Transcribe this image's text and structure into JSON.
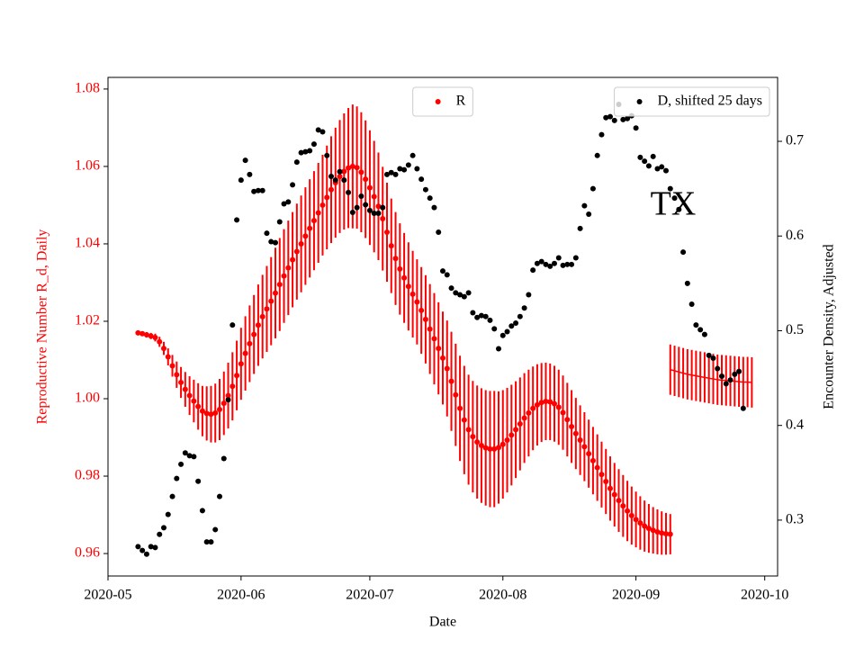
{
  "chart_data": {
    "type": "errorbar-scatter",
    "annotation": "TX",
    "x_label": "Date",
    "y_label": "Reproductive Number R_d, Daily",
    "y2_label": "Encounter Density, Adjusted",
    "y_color": "#ff0000",
    "xlim": [
      0,
      156
    ],
    "xticks": [
      {
        "value": 0,
        "label": "2020-05"
      },
      {
        "value": 31,
        "label": "2020-06"
      },
      {
        "value": 61,
        "label": "2020-07"
      },
      {
        "value": 92,
        "label": "2020-08"
      },
      {
        "value": 123,
        "label": "2020-09"
      },
      {
        "value": 153,
        "label": "2020-10"
      }
    ],
    "ylim": [
      0.9542,
      1.083
    ],
    "yticks": [
      0.96,
      0.98,
      {
        "value": 1,
        "label": "1.00"
      },
      1.02,
      1.04,
      1.06,
      1.08
    ],
    "y2lim": [
      0.241,
      0.7675
    ],
    "y2ticks": [
      0.3,
      0.4,
      0.5,
      0.6,
      0.7
    ],
    "x": [
      7,
      8,
      9,
      10,
      11,
      12,
      13,
      14,
      15,
      16,
      17,
      18,
      19,
      20,
      21,
      22,
      23,
      24,
      25,
      26,
      27,
      28,
      29,
      30,
      31,
      32,
      33,
      34,
      35,
      36,
      37,
      38,
      39,
      40,
      41,
      42,
      43,
      44,
      45,
      46,
      47,
      48,
      49,
      50,
      51,
      52,
      53,
      54,
      55,
      56,
      57,
      58,
      59,
      60,
      61,
      62,
      63,
      64,
      65,
      66,
      67,
      68,
      69,
      70,
      71,
      72,
      73,
      74,
      75,
      76,
      77,
      78,
      79,
      80,
      81,
      82,
      83,
      84,
      85,
      86,
      87,
      88,
      89,
      90,
      91,
      92,
      93,
      94,
      95,
      96,
      97,
      98,
      99,
      100,
      101,
      102,
      103,
      104,
      105,
      106,
      107,
      108,
      109,
      110,
      111,
      112,
      113,
      114,
      115,
      116,
      117,
      118,
      119,
      120,
      121,
      122,
      123,
      124,
      125,
      126,
      127,
      128,
      129,
      130,
      131,
      132,
      133,
      134,
      135,
      136,
      137,
      138,
      139,
      140,
      141,
      142,
      143,
      144,
      145,
      146,
      147,
      148,
      149,
      150
    ],
    "series": [
      {
        "name": "R",
        "color": "#ff0000",
        "marker": true,
        "legend": "upper center",
        "values": [
          1.017,
          1.0168,
          1.0165,
          1.0162,
          1.0158,
          1.0147,
          1.013,
          1.0108,
          1.0085,
          1.0062,
          1.0042,
          1.0024,
          1.0008,
          0.9994,
          0.998,
          0.9968,
          0.9962,
          0.996,
          0.9963,
          0.9972,
          0.9988,
          1.0008,
          1.0032,
          1.006,
          1.009,
          1.0117,
          1.0142,
          1.0166,
          1.019,
          1.0212,
          1.0232,
          1.0252,
          1.0273,
          1.0295,
          1.0317,
          1.0338,
          1.0359,
          1.038,
          1.04,
          1.042,
          1.044,
          1.046,
          1.048,
          1.05,
          1.052,
          1.054,
          1.0558,
          1.0574,
          1.0587,
          1.0596,
          1.06,
          1.0597,
          1.0585,
          1.0567,
          1.0545,
          1.0522,
          1.0497,
          1.0465,
          1.043,
          1.0395,
          1.0362,
          1.0335,
          1.0312,
          1.029,
          1.027,
          1.025,
          1.0228,
          1.0205,
          1.018,
          1.0155,
          1.013,
          1.0105,
          1.0078,
          1.0045,
          1.001,
          0.9975,
          0.9945,
          0.992,
          0.9902,
          0.9888,
          0.9879,
          0.9873,
          0.987,
          0.987,
          0.9874,
          0.9882,
          0.9893,
          0.9906,
          0.992,
          0.9935,
          0.995,
          0.9963,
          0.9975,
          0.9984,
          0.999,
          0.9993,
          0.9992,
          0.9987,
          0.9978,
          0.9964,
          0.9946,
          0.9928,
          0.991,
          0.9893,
          0.9876,
          0.9858,
          0.984,
          0.9822,
          0.9804,
          0.9786,
          0.9768,
          0.9752,
          0.9737,
          0.9723,
          0.971,
          0.9698,
          0.9688,
          0.9679,
          0.9671,
          0.9665,
          0.966,
          0.9656,
          0.9653,
          0.9651,
          0.965,
          null,
          null,
          null,
          null,
          null,
          null,
          null,
          null,
          null,
          null,
          null,
          null,
          null,
          null,
          null,
          null,
          null,
          null,
          null
        ],
        "errors": [
          0.0005,
          0.0006,
          0.0007,
          0.0008,
          0.001,
          0.0013,
          0.0017,
          0.0022,
          0.0028,
          0.0034,
          0.004,
          0.0045,
          0.005,
          0.0055,
          0.006,
          0.0065,
          0.007,
          0.0073,
          0.0076,
          0.0079,
          0.0082,
          0.0085,
          0.0088,
          0.009,
          0.0093,
          0.0096,
          0.0099,
          0.0102,
          0.0105,
          0.0108,
          0.0111,
          0.0114,
          0.0117,
          0.012,
          0.0121,
          0.0122,
          0.0123,
          0.0124,
          0.0125,
          0.0126,
          0.0127,
          0.0128,
          0.0129,
          0.013,
          0.0134,
          0.0138,
          0.0142,
          0.0146,
          0.015,
          0.0155,
          0.016,
          0.0158,
          0.0155,
          0.0152,
          0.0148,
          0.0144,
          0.0139,
          0.0134,
          0.0128,
          0.0122,
          0.012,
          0.0118,
          0.0116,
          0.0114,
          0.0112,
          0.011,
          0.0112,
          0.0114,
          0.0116,
          0.0118,
          0.0119,
          0.012,
          0.0124,
          0.0128,
          0.0132,
          0.0136,
          0.014,
          0.0142,
          0.0144,
          0.0146,
          0.0148,
          0.0149,
          0.015,
          0.015,
          0.0145,
          0.014,
          0.0135,
          0.013,
          0.0125,
          0.012,
          0.0116,
          0.0112,
          0.0108,
          0.0105,
          0.0102,
          0.01,
          0.0099,
          0.0098,
          0.0097,
          0.0096,
          0.0095,
          0.0094,
          0.0092,
          0.009,
          0.0089,
          0.0088,
          0.0087,
          0.0086,
          0.0085,
          0.0084,
          0.0083,
          0.0082,
          0.0081,
          0.008,
          0.0078,
          0.0075,
          0.0072,
          0.0069,
          0.0066,
          0.0063,
          0.006,
          0.0058,
          0.0056,
          0.0054,
          0.0052,
          null,
          null,
          null,
          null,
          null,
          null,
          null,
          null,
          null,
          null,
          null,
          null,
          null,
          null,
          null,
          null,
          null,
          null,
          null
        ]
      },
      {
        "color": "#ff0000",
        "marker": false,
        "values": [
          null,
          null,
          null,
          null,
          null,
          null,
          null,
          null,
          null,
          null,
          null,
          null,
          null,
          null,
          null,
          null,
          null,
          null,
          null,
          null,
          null,
          null,
          null,
          null,
          null,
          null,
          null,
          null,
          null,
          null,
          null,
          null,
          null,
          null,
          null,
          null,
          null,
          null,
          null,
          null,
          null,
          null,
          null,
          null,
          null,
          null,
          null,
          null,
          null,
          null,
          null,
          null,
          null,
          null,
          null,
          null,
          null,
          null,
          null,
          null,
          null,
          null,
          null,
          null,
          null,
          null,
          null,
          null,
          null,
          null,
          null,
          null,
          null,
          null,
          null,
          null,
          null,
          null,
          null,
          null,
          null,
          null,
          null,
          null,
          null,
          null,
          null,
          null,
          null,
          null,
          null,
          null,
          null,
          null,
          null,
          null,
          null,
          null,
          null,
          null,
          null,
          null,
          null,
          null,
          null,
          null,
          null,
          null,
          null,
          null,
          null,
          null,
          null,
          null,
          null,
          null,
          null,
          null,
          null,
          null,
          null,
          null,
          null,
          null,
          1.0075,
          1.0072,
          1.0069,
          1.0066,
          1.0063,
          1.0061,
          1.0059,
          1.0057,
          1.0055,
          1.0053,
          1.0051,
          1.0049,
          1.0048,
          1.0047,
          1.0046,
          1.0045,
          1.0044,
          1.0043,
          1.0043,
          1.0042
        ],
        "errors": [
          null,
          null,
          null,
          null,
          null,
          null,
          null,
          null,
          null,
          null,
          null,
          null,
          null,
          null,
          null,
          null,
          null,
          null,
          null,
          null,
          null,
          null,
          null,
          null,
          null,
          null,
          null,
          null,
          null,
          null,
          null,
          null,
          null,
          null,
          null,
          null,
          null,
          null,
          null,
          null,
          null,
          null,
          null,
          null,
          null,
          null,
          null,
          null,
          null,
          null,
          null,
          null,
          null,
          null,
          null,
          null,
          null,
          null,
          null,
          null,
          null,
          null,
          null,
          null,
          null,
          null,
          null,
          null,
          null,
          null,
          null,
          null,
          null,
          null,
          null,
          null,
          null,
          null,
          null,
          null,
          null,
          null,
          null,
          null,
          null,
          null,
          null,
          null,
          null,
          null,
          null,
          null,
          null,
          null,
          null,
          null,
          null,
          null,
          null,
          null,
          null,
          null,
          null,
          null,
          null,
          null,
          null,
          null,
          null,
          null,
          null,
          null,
          null,
          null,
          null,
          null,
          null,
          null,
          null,
          null,
          null,
          null,
          null,
          null,
          0.0065,
          0.0065,
          0.0065,
          0.0065,
          0.0065,
          0.0065,
          0.0065,
          0.0065,
          0.0065,
          0.0065,
          0.0065,
          0.0065,
          0.0065,
          0.0065,
          0.0065,
          0.0065,
          0.0065,
          0.0065,
          0.0065,
          0.0065
        ]
      },
      {
        "name": "D, shifted 25 days",
        "color": "#000000",
        "marker": true,
        "axis": "y2",
        "legend": "upper right",
        "values": [
          0.272,
          0.268,
          0.264,
          0.272,
          0.271,
          0.285,
          0.292,
          0.306,
          0.325,
          0.344,
          0.359,
          0.371,
          0.368,
          0.367,
          0.341,
          0.31,
          0.277,
          0.277,
          0.29,
          0.325,
          0.365,
          0.427,
          0.506,
          0.617,
          0.659,
          0.68,
          0.665,
          0.647,
          0.648,
          0.648,
          0.603,
          0.594,
          0.593,
          0.615,
          0.634,
          0.636,
          0.654,
          0.678,
          0.688,
          0.689,
          0.69,
          0.697,
          0.712,
          0.71,
          0.685,
          0.663,
          0.659,
          0.668,
          0.659,
          0.646,
          0.625,
          0.63,
          0.642,
          0.633,
          0.627,
          0.624,
          0.624,
          0.63,
          0.665,
          0.667,
          0.665,
          0.671,
          0.67,
          0.675,
          0.685,
          0.671,
          0.66,
          0.649,
          0.64,
          0.63,
          0.604,
          0.563,
          0.559,
          0.545,
          0.54,
          0.538,
          0.536,
          0.54,
          0.519,
          0.514,
          0.516,
          0.515,
          0.511,
          0.502,
          0.481,
          0.495,
          0.499,
          0.505,
          0.508,
          0.515,
          0.524,
          0.538,
          0.564,
          0.571,
          0.573,
          0.57,
          0.568,
          0.571,
          0.577,
          0.569,
          0.57,
          0.57,
          0.577,
          0.608,
          0.632,
          0.623,
          0.65,
          0.685,
          0.707,
          0.725,
          0.726,
          0.722,
          0.739,
          0.723,
          0.724,
          0.727,
          0.714,
          0.683,
          0.679,
          0.674,
          0.684,
          0.671,
          0.673,
          0.669,
          0.65,
          0.64,
          0.628,
          0.583,
          0.55,
          0.528,
          0.506,
          0.501,
          0.496,
          0.474,
          0.471,
          0.46,
          0.452,
          0.444,
          0.448,
          0.454,
          0.457,
          0.418,
          null,
          null
        ]
      }
    ]
  }
}
